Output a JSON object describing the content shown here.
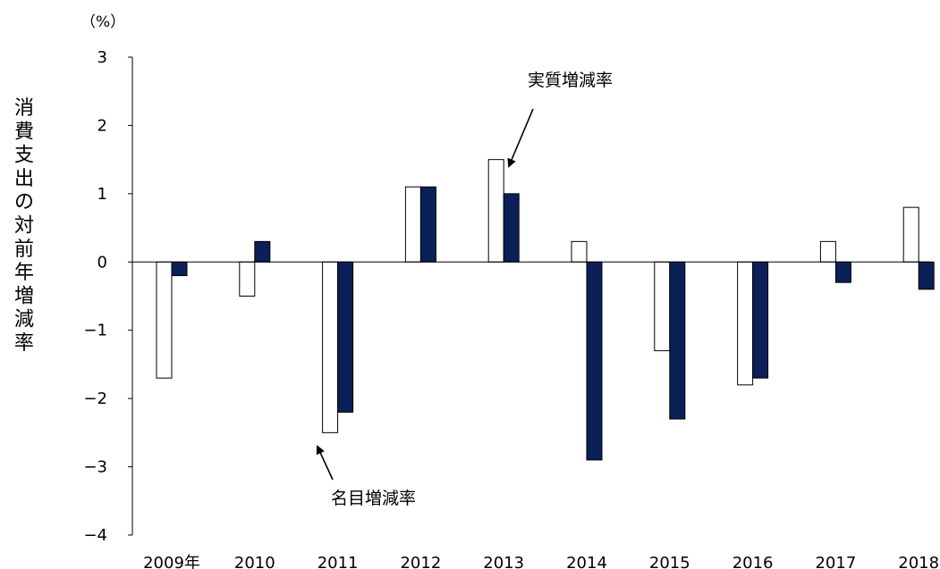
{
  "chart_data": {
    "type": "bar",
    "categories": [
      "2009年",
      "2010",
      "2011",
      "2012",
      "2013",
      "2014",
      "2015",
      "2016",
      "2017",
      "2018"
    ],
    "series": [
      {
        "name": "名目増減率",
        "values": [
          -1.7,
          -0.5,
          -2.5,
          1.1,
          1.5,
          0.3,
          -1.3,
          -1.8,
          0.3,
          0.8
        ],
        "color": "#ffffff",
        "stroke": "#000000"
      },
      {
        "name": "実質増減率",
        "values": [
          -0.2,
          0.3,
          -2.2,
          1.1,
          1.0,
          -2.9,
          -2.3,
          -1.7,
          -0.3,
          -0.4
        ],
        "color": "#0a2057",
        "stroke": "#000000"
      }
    ],
    "ylabel": "消費支出の対前年増減率",
    "unit": "（%）",
    "ylim": [
      -4,
      3
    ],
    "yticks": [
      3,
      2,
      1,
      0,
      -1,
      -2,
      -3,
      -4
    ],
    "ytick_labels": [
      "3",
      "2",
      "1",
      "0",
      "−1",
      "−2",
      "−3",
      "−4"
    ],
    "grid": false,
    "legend": "none",
    "annotations": [
      {
        "text": "実質増減率",
        "points_to": "2013 実質増減率"
      },
      {
        "text": "名目増減率",
        "points_to": "2011 名目増減率"
      }
    ]
  }
}
